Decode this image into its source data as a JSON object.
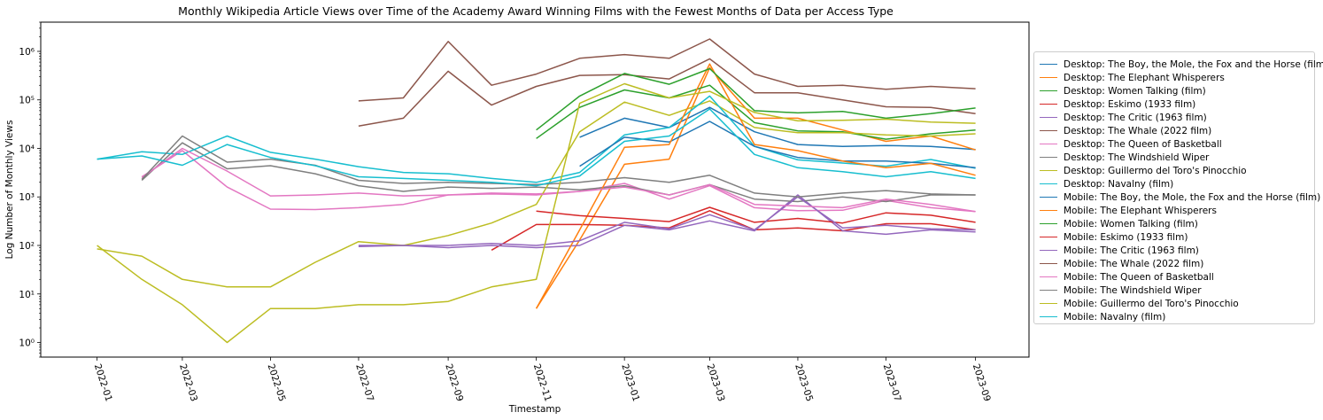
{
  "chart_data": {
    "type": "line",
    "title": "Monthly Wikipedia Article Views over Time of the Academy Award Winning Films with the Fewest Months of Data per Access Type",
    "xlabel": "Timestamp",
    "ylabel": "Log Number of Monthly Views",
    "yscale": "log",
    "ylim": [
      0.5,
      4000000
    ],
    "yticks": [
      1,
      10,
      100,
      1000,
      10000,
      100000,
      1000000
    ],
    "ytick_labels": [
      "10⁰",
      "10¹",
      "10²",
      "10³",
      "10⁴",
      "10⁵",
      "10⁶"
    ],
    "xlim": [
      "2021-11-23",
      "2023-10-08"
    ],
    "xticks": [
      "2022-01",
      "2022-03",
      "2022-05",
      "2022-07",
      "2022-09",
      "2022-11",
      "2023-01",
      "2023-03",
      "2023-05",
      "2023-07",
      "2023-09"
    ],
    "grid": false,
    "legend_position": "outside-right",
    "colors": [
      "#1f77b4",
      "#ff7f0e",
      "#2ca02c",
      "#d62728",
      "#9467bd",
      "#8c564b",
      "#e377c2",
      "#7f7f7f",
      "#bcbd22",
      "#17becf"
    ],
    "series": [
      {
        "name": "Desktop: The Boy, the Mole, the Fox and the Horse (film)",
        "x": [
          "2022-12",
          "2023-01",
          "2023-02",
          "2023-03",
          "2023-04",
          "2023-05",
          "2023-06",
          "2023-07",
          "2023-08",
          "2023-09"
        ],
        "y": [
          17000,
          42000,
          27000,
          70000,
          22000,
          12000,
          11000,
          11500,
          11000,
          9500
        ]
      },
      {
        "name": "Desktop: The Elephant Whisperers",
        "x": [
          "2022-11",
          "2022-12",
          "2023-01",
          "2023-02",
          "2023-03",
          "2023-04",
          "2023-05",
          "2023-06",
          "2023-07",
          "2023-08",
          "2023-09"
        ],
        "y": [
          5,
          130,
          4700,
          6000,
          460000,
          42000,
          42000,
          24000,
          14000,
          18000,
          9300
        ]
      },
      {
        "name": "Desktop: Women Talking (film)",
        "x": [
          "2022-11",
          "2022-12",
          "2023-01",
          "2023-02",
          "2023-03",
          "2023-04",
          "2023-05",
          "2023-06",
          "2023-07",
          "2023-08",
          "2023-09"
        ],
        "y": [
          16000,
          70000,
          160000,
          110000,
          200000,
          34000,
          23000,
          22000,
          15500,
          20000,
          24000
        ]
      },
      {
        "name": "Desktop: Eskimo (1933 film)",
        "x": [
          "2022-10",
          "2022-11",
          "2022-12",
          "2023-01",
          "2023-02",
          "2023-03",
          "2023-04",
          "2023-05",
          "2023-06",
          "2023-07",
          "2023-08",
          "2023-09"
        ],
        "y": [
          80,
          270,
          270,
          260,
          230,
          520,
          210,
          230,
          200,
          280,
          280,
          210
        ]
      },
      {
        "name": "Desktop: The Critic (1963 film)",
        "x": [
          "2022-07",
          "2022-08",
          "2022-09",
          "2022-10",
          "2022-11",
          "2022-12",
          "2023-01",
          "2023-02",
          "2023-03",
          "2023-04",
          "2023-05",
          "2023-06",
          "2023-07",
          "2023-08",
          "2023-09"
        ],
        "y": [
          95,
          100,
          90,
          100,
          90,
          100,
          260,
          210,
          320,
          200,
          1100,
          200,
          170,
          210,
          190
        ]
      },
      {
        "name": "Desktop: The Whale (2022 film)",
        "x": [
          "2022-07",
          "2022-08",
          "2022-09",
          "2022-10",
          "2022-11",
          "2022-12",
          "2023-01",
          "2023-02",
          "2023-03",
          "2023-04",
          "2023-05",
          "2023-06",
          "2023-07",
          "2023-08",
          "2023-09"
        ],
        "y": [
          29000,
          42000,
          390000,
          78000,
          190000,
          320000,
          330000,
          270000,
          700000,
          140000,
          140000,
          100000,
          72000,
          70000,
          52000
        ]
      },
      {
        "name": "Desktop: The Queen of Basketball",
        "x": [
          "2022-02",
          "2022-03",
          "2022-04",
          "2022-05",
          "2022-06",
          "2022-07",
          "2022-08",
          "2022-09",
          "2022-10",
          "2022-11",
          "2022-12",
          "2023-01",
          "2023-02",
          "2023-03",
          "2023-04",
          "2023-05",
          "2023-06",
          "2023-07",
          "2023-08",
          "2023-09"
        ],
        "y": [
          2600,
          9000,
          1600,
          560,
          550,
          600,
          700,
          1100,
          1200,
          1150,
          1300,
          1900,
          900,
          1700,
          600,
          520,
          530,
          850,
          600,
          500
        ]
      },
      {
        "name": "Desktop: The Windshield Wiper",
        "x": [
          "2022-02",
          "2022-03",
          "2022-04",
          "2022-05",
          "2022-06",
          "2022-07",
          "2022-08",
          "2022-09",
          "2022-10",
          "2022-11",
          "2022-12",
          "2023-01",
          "2023-02",
          "2023-03",
          "2023-04",
          "2023-05",
          "2023-06",
          "2023-07",
          "2023-08",
          "2023-09"
        ],
        "y": [
          2200,
          13000,
          3800,
          4400,
          3000,
          1700,
          1300,
          1600,
          1500,
          1600,
          1400,
          1700,
          1100,
          1800,
          900,
          800,
          1000,
          800,
          1100,
          1100
        ]
      },
      {
        "name": "Desktop: Guillermo del Toro's Pinocchio",
        "x": [
          "2022-01",
          "2022-02",
          "2022-03",
          "2022-04",
          "2022-05",
          "2022-06",
          "2022-07",
          "2022-08",
          "2022-09",
          "2022-10",
          "2022-11",
          "2022-12",
          "2023-01",
          "2023-02",
          "2023-03",
          "2023-04",
          "2023-05",
          "2023-06",
          "2023-07",
          "2023-08",
          "2023-09"
        ],
        "y": [
          85,
          60,
          20,
          14,
          14,
          45,
          120,
          100,
          160,
          290,
          700,
          22000,
          90000,
          48000,
          95000,
          27000,
          21000,
          21000,
          19000,
          18000,
          20000
        ]
      },
      {
        "name": "Desktop: Navalny (film)",
        "x": [
          "2022-01",
          "2022-02",
          "2022-03",
          "2022-04",
          "2022-05",
          "2022-06",
          "2022-07",
          "2022-08",
          "2022-09",
          "2022-10",
          "2022-11",
          "2022-12",
          "2023-01",
          "2023-02",
          "2023-03",
          "2023-04",
          "2023-05",
          "2023-06",
          "2023-07",
          "2023-08",
          "2023-09"
        ],
        "y": [
          6000,
          8500,
          7500,
          18000,
          8300,
          6000,
          4200,
          3200,
          3000,
          2400,
          2000,
          3200,
          19000,
          27000,
          120000,
          11000,
          5800,
          5000,
          4300,
          5900,
          3900
        ]
      },
      {
        "name": "Mobile: The Boy, the Mole, the Fox and the Horse (film)",
        "x": [
          "2022-12",
          "2023-01",
          "2023-02",
          "2023-03",
          "2023-04",
          "2023-05",
          "2023-06",
          "2023-07",
          "2023-08",
          "2023-09"
        ],
        "y": [
          4300,
          17000,
          13500,
          36000,
          11000,
          6500,
          5500,
          5500,
          4900,
          4000
        ]
      },
      {
        "name": "Mobile: The Elephant Whisperers",
        "x": [
          "2022-11",
          "2022-12",
          "2023-01",
          "2023-02",
          "2023-03",
          "2023-04",
          "2023-05",
          "2023-06",
          "2023-07",
          "2023-08",
          "2023-09"
        ],
        "y": [
          5,
          210,
          10500,
          12000,
          550000,
          12000,
          9000,
          5500,
          4000,
          4900,
          2800
        ]
      },
      {
        "name": "Mobile: Women Talking (film)",
        "x": [
          "2022-11",
          "2022-12",
          "2023-01",
          "2023-02",
          "2023-03",
          "2023-04",
          "2023-05",
          "2023-06",
          "2023-07",
          "2023-08",
          "2023-09"
        ],
        "y": [
          24000,
          120000,
          350000,
          210000,
          440000,
          60000,
          54000,
          58000,
          42000,
          52000,
          68000
        ]
      },
      {
        "name": "Mobile: Eskimo (1933 film)",
        "x": [
          "2022-11",
          "2022-12",
          "2023-01",
          "2023-02",
          "2023-03",
          "2023-04",
          "2023-05",
          "2023-06",
          "2023-07",
          "2023-08",
          "2023-09"
        ],
        "y": [
          510,
          410,
          360,
          310,
          610,
          300,
          360,
          290,
          470,
          420,
          300
        ]
      },
      {
        "name": "Mobile: The Critic (1963 film)",
        "x": [
          "2022-07",
          "2022-08",
          "2022-09",
          "2022-10",
          "2022-11",
          "2022-12",
          "2023-01",
          "2023-02",
          "2023-03",
          "2023-04",
          "2023-05",
          "2023-06",
          "2023-07",
          "2023-08",
          "2023-09"
        ],
        "y": [
          100,
          100,
          100,
          110,
          100,
          125,
          300,
          220,
          430,
          210,
          1000,
          230,
          260,
          220,
          210
        ]
      },
      {
        "name": "Mobile: The Whale (2022 film)",
        "x": [
          "2022-07",
          "2022-08",
          "2022-09",
          "2022-10",
          "2022-11",
          "2022-12",
          "2023-01",
          "2023-02",
          "2023-03",
          "2023-04",
          "2023-05",
          "2023-06",
          "2023-07",
          "2023-08",
          "2023-09"
        ],
        "y": [
          95000,
          110000,
          1600000,
          200000,
          340000,
          720000,
          860000,
          720000,
          1800000,
          340000,
          190000,
          200000,
          165000,
          190000,
          170000
        ]
      },
      {
        "name": "Mobile: The Queen of Basketball",
        "x": [
          "2022-02",
          "2022-03",
          "2022-04",
          "2022-05",
          "2022-06",
          "2022-07",
          "2022-08",
          "2022-09",
          "2022-10",
          "2022-11",
          "2022-12",
          "2023-01",
          "2023-02",
          "2023-03",
          "2023-04",
          "2023-05",
          "2023-06",
          "2023-07",
          "2023-08",
          "2023-09"
        ],
        "y": [
          2500,
          10000,
          3400,
          1050,
          1100,
          1200,
          1050,
          1100,
          1150,
          1100,
          1300,
          1600,
          1100,
          1800,
          700,
          650,
          600,
          900,
          700,
          500
        ]
      },
      {
        "name": "Mobile: The Windshield Wiper",
        "x": [
          "2022-02",
          "2022-03",
          "2022-04",
          "2022-05",
          "2022-06",
          "2022-07",
          "2022-08",
          "2022-09",
          "2022-10",
          "2022-11",
          "2022-12",
          "2023-01",
          "2023-02",
          "2023-03",
          "2023-04",
          "2023-05",
          "2023-06",
          "2023-07",
          "2023-08",
          "2023-09"
        ],
        "y": [
          2300,
          18000,
          5200,
          6000,
          4500,
          2200,
          1900,
          2000,
          1900,
          1800,
          2000,
          2500,
          2000,
          2800,
          1200,
          1000,
          1200,
          1350,
          1150,
          1100
        ]
      },
      {
        "name": "Mobile: Guillermo del Toro's Pinocchio",
        "x": [
          "2022-01",
          "2022-02",
          "2022-03",
          "2022-04",
          "2022-05",
          "2022-06",
          "2022-07",
          "2022-08",
          "2022-09",
          "2022-10",
          "2022-11",
          "2022-12",
          "2023-01",
          "2023-02",
          "2023-03",
          "2023-04",
          "2023-05",
          "2023-06",
          "2023-07",
          "2023-08",
          "2023-09"
        ],
        "y": [
          100,
          20,
          6,
          1,
          5,
          5,
          6,
          6,
          7,
          14,
          20,
          85000,
          215000,
          110000,
          150000,
          55000,
          37000,
          38000,
          40000,
          35000,
          33000
        ]
      },
      {
        "name": "Mobile: Navalny (film)",
        "x": [
          "2022-01",
          "2022-02",
          "2022-03",
          "2022-04",
          "2022-05",
          "2022-06",
          "2022-07",
          "2022-08",
          "2022-09",
          "2022-10",
          "2022-11",
          "2022-12",
          "2023-01",
          "2023-02",
          "2023-03",
          "2023-04",
          "2023-05",
          "2023-06",
          "2023-07",
          "2023-08",
          "2023-09"
        ],
        "y": [
          6000,
          7000,
          4500,
          12000,
          6500,
          4400,
          2600,
          2400,
          2200,
          2000,
          1700,
          2700,
          14000,
          18000,
          65000,
          7500,
          4000,
          3300,
          2600,
          3300,
          2400
        ]
      }
    ]
  }
}
